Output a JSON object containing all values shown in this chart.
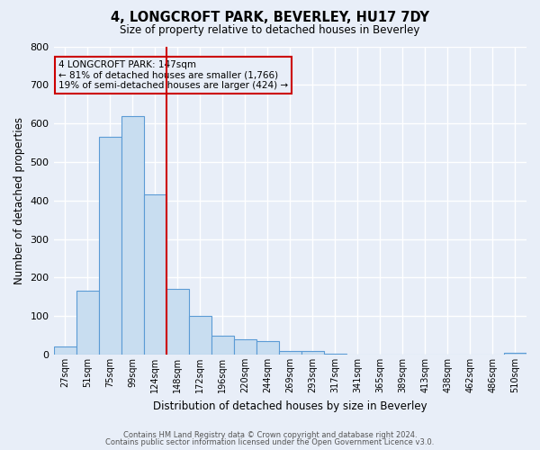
{
  "title": "4, LONGCROFT PARK, BEVERLEY, HU17 7DY",
  "subtitle": "Size of property relative to detached houses in Beverley",
  "xlabel": "Distribution of detached houses by size in Beverley",
  "ylabel": "Number of detached properties",
  "bar_labels": [
    "27sqm",
    "51sqm",
    "75sqm",
    "99sqm",
    "124sqm",
    "148sqm",
    "172sqm",
    "196sqm",
    "220sqm",
    "244sqm",
    "269sqm",
    "293sqm",
    "317sqm",
    "341sqm",
    "365sqm",
    "389sqm",
    "413sqm",
    "438sqm",
    "462sqm",
    "486sqm",
    "510sqm"
  ],
  "bar_values": [
    20,
    165,
    565,
    620,
    415,
    170,
    100,
    50,
    40,
    35,
    10,
    10,
    2,
    0,
    0,
    0,
    0,
    0,
    0,
    0,
    5
  ],
  "bar_color": "#c8ddf0",
  "bar_edge_color": "#5b9bd5",
  "bg_color": "#e8eef8",
  "plot_bg_color": "#e8eef8",
  "grid_color": "#ffffff",
  "annotation_title": "4 LONGCROFT PARK: 147sqm",
  "annotation_line1": "← 81% of detached houses are smaller (1,766)",
  "annotation_line2": "19% of semi-detached houses are larger (424) →",
  "annotation_box_color": "#cc0000",
  "marker_line_color": "#cc0000",
  "ylim": [
    0,
    800
  ],
  "yticks": [
    0,
    100,
    200,
    300,
    400,
    500,
    600,
    700,
    800
  ],
  "footer1": "Contains HM Land Registry data © Crown copyright and database right 2024.",
  "footer2": "Contains public sector information licensed under the Open Government Licence v3.0."
}
